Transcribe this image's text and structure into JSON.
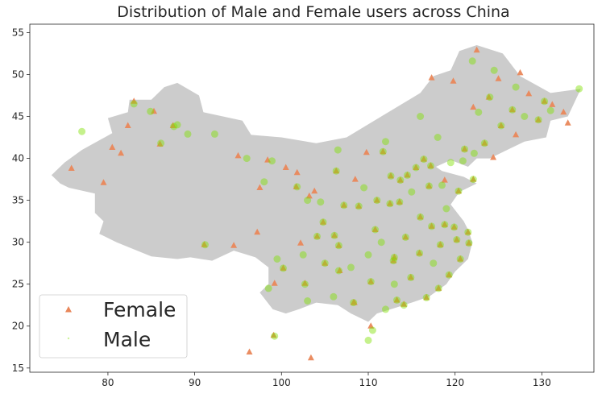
{
  "chart_data": {
    "type": "scatter",
    "title": "Distribution of Male and Female users across China",
    "xlabel": "",
    "ylabel": "",
    "xlim": [
      71,
      136
    ],
    "ylim": [
      14.5,
      56
    ],
    "xticks": [
      80,
      90,
      100,
      110,
      120,
      130
    ],
    "yticks": [
      15,
      20,
      25,
      30,
      35,
      40,
      45,
      50,
      55
    ],
    "grid": false,
    "legend_position": "lower-left",
    "background_map": "China (grey)",
    "series": [
      {
        "name": "Female",
        "marker": "triangle",
        "color": "#e9875a",
        "points": [
          [
            81.5,
            40.6
          ],
          [
            82.3,
            43.9
          ],
          [
            83.0,
            46.8
          ],
          [
            85.3,
            45.6
          ],
          [
            87.5,
            43.9
          ],
          [
            75.8,
            38.8
          ],
          [
            79.5,
            37.1
          ],
          [
            80.5,
            41.3
          ],
          [
            86.0,
            41.7
          ],
          [
            95.0,
            40.3
          ],
          [
            98.4,
            39.8
          ],
          [
            101.8,
            38.3
          ],
          [
            103.8,
            36.1
          ],
          [
            101.7,
            36.6
          ],
          [
            91.1,
            29.7
          ],
          [
            94.5,
            29.6
          ],
          [
            97.2,
            31.2
          ],
          [
            99.1,
            18.9
          ],
          [
            96.3,
            16.9
          ],
          [
            103.4,
            16.2
          ],
          [
            102.7,
            25.1
          ],
          [
            104.1,
            30.7
          ],
          [
            106.6,
            29.6
          ],
          [
            106.7,
            26.6
          ],
          [
            108.4,
            22.8
          ],
          [
            110.3,
            20.0
          ],
          [
            113.3,
            23.1
          ],
          [
            114.1,
            22.6
          ],
          [
            116.4,
            39.9
          ],
          [
            117.2,
            39.1
          ],
          [
            121.5,
            31.2
          ],
          [
            120.2,
            30.3
          ],
          [
            118.8,
            32.1
          ],
          [
            114.3,
            30.6
          ],
          [
            113.0,
            28.2
          ],
          [
            112.5,
            34.6
          ],
          [
            108.9,
            34.3
          ],
          [
            112.6,
            37.9
          ],
          [
            111.7,
            40.8
          ],
          [
            109.8,
            40.7
          ],
          [
            106.3,
            38.5
          ],
          [
            123.4,
            41.8
          ],
          [
            125.3,
            43.9
          ],
          [
            126.6,
            45.8
          ],
          [
            129.6,
            44.6
          ],
          [
            130.3,
            46.8
          ],
          [
            131.2,
            46.4
          ],
          [
            123.9,
            47.3
          ],
          [
            119.8,
            49.2
          ],
          [
            117.3,
            49.6
          ],
          [
            122.1,
            46.1
          ],
          [
            115.5,
            38.9
          ],
          [
            114.5,
            38.0
          ],
          [
            117.0,
            36.7
          ],
          [
            120.4,
            36.1
          ],
          [
            118.8,
            37.4
          ],
          [
            122.1,
            37.5
          ],
          [
            119.3,
            26.1
          ],
          [
            118.1,
            24.5
          ],
          [
            116.7,
            23.4
          ],
          [
            110.3,
            25.3
          ],
          [
            108.3,
            22.8
          ],
          [
            105.0,
            27.5
          ],
          [
            100.2,
            26.9
          ],
          [
            99.2,
            25.1
          ],
          [
            102.2,
            29.9
          ],
          [
            104.8,
            32.4
          ],
          [
            107.2,
            34.4
          ],
          [
            106.1,
            30.8
          ],
          [
            113.6,
            34.8
          ],
          [
            111.0,
            35.0
          ],
          [
            115.9,
            28.7
          ],
          [
            114.9,
            25.8
          ],
          [
            112.9,
            27.8
          ],
          [
            121.6,
            29.9
          ],
          [
            120.6,
            28.0
          ],
          [
            119.9,
            31.8
          ],
          [
            117.3,
            31.9
          ],
          [
            118.3,
            29.7
          ],
          [
            116.0,
            33.0
          ],
          [
            127.5,
            50.2
          ],
          [
            125.0,
            49.5
          ],
          [
            128.5,
            47.7
          ],
          [
            124.4,
            40.1
          ],
          [
            121.1,
            41.1
          ],
          [
            132.5,
            45.5
          ],
          [
            133.0,
            44.2
          ],
          [
            127.0,
            42.8
          ],
          [
            122.5,
            52.9
          ],
          [
            108.5,
            37.5
          ],
          [
            103.2,
            35.5
          ],
          [
            100.5,
            38.9
          ],
          [
            97.5,
            36.5
          ],
          [
            110.8,
            31.5
          ],
          [
            113.7,
            37.4
          ]
        ]
      },
      {
        "name": "Male",
        "marker": "circle",
        "color": "#7ee000",
        "points": [
          [
            77.0,
            43.2
          ],
          [
            83.0,
            46.5
          ],
          [
            84.9,
            45.6
          ],
          [
            86.1,
            41.8
          ],
          [
            87.6,
            43.8
          ],
          [
            89.2,
            42.9
          ],
          [
            88.0,
            44.0
          ],
          [
            92.3,
            42.9
          ],
          [
            98.0,
            37.2
          ],
          [
            98.9,
            39.7
          ],
          [
            103.0,
            35.0
          ],
          [
            101.8,
            36.6
          ],
          [
            91.2,
            29.7
          ],
          [
            99.2,
            18.8
          ],
          [
            106.6,
            26.6
          ],
          [
            110.0,
            18.3
          ],
          [
            110.5,
            19.5
          ],
          [
            112.0,
            22.0
          ],
          [
            113.3,
            23.1
          ],
          [
            114.1,
            22.5
          ],
          [
            116.4,
            39.9
          ],
          [
            117.2,
            39.1
          ],
          [
            121.5,
            31.2
          ],
          [
            120.2,
            30.3
          ],
          [
            118.8,
            32.1
          ],
          [
            114.3,
            30.6
          ],
          [
            113.0,
            28.2
          ],
          [
            112.5,
            34.6
          ],
          [
            108.9,
            34.3
          ],
          [
            112.6,
            37.9
          ],
          [
            111.7,
            40.8
          ],
          [
            106.3,
            38.5
          ],
          [
            123.4,
            41.8
          ],
          [
            125.3,
            43.9
          ],
          [
            126.6,
            45.8
          ],
          [
            129.6,
            44.6
          ],
          [
            130.3,
            46.8
          ],
          [
            124.0,
            47.3
          ],
          [
            122.0,
            51.6
          ],
          [
            124.5,
            50.5
          ],
          [
            127.0,
            48.5
          ],
          [
            134.3,
            48.3
          ],
          [
            131.0,
            45.7
          ],
          [
            128.0,
            45.0
          ],
          [
            122.7,
            45.5
          ],
          [
            118.0,
            42.5
          ],
          [
            121.1,
            41.1
          ],
          [
            122.2,
            40.6
          ],
          [
            120.9,
            39.7
          ],
          [
            118.5,
            36.8
          ],
          [
            120.4,
            36.1
          ],
          [
            122.1,
            37.5
          ],
          [
            119.3,
            26.1
          ],
          [
            118.1,
            24.5
          ],
          [
            116.7,
            23.4
          ],
          [
            110.3,
            25.3
          ],
          [
            108.3,
            22.8
          ],
          [
            105.0,
            27.5
          ],
          [
            100.2,
            26.9
          ],
          [
            102.7,
            25.0
          ],
          [
            104.1,
            30.7
          ],
          [
            106.6,
            29.6
          ],
          [
            104.8,
            32.4
          ],
          [
            107.2,
            34.4
          ],
          [
            106.1,
            30.8
          ],
          [
            113.6,
            34.8
          ],
          [
            111.0,
            35.0
          ],
          [
            115.9,
            28.7
          ],
          [
            114.9,
            25.8
          ],
          [
            112.9,
            27.8
          ],
          [
            121.6,
            29.9
          ],
          [
            120.6,
            28.0
          ],
          [
            119.9,
            31.8
          ],
          [
            117.3,
            31.9
          ],
          [
            118.3,
            29.7
          ],
          [
            116.0,
            33.0
          ],
          [
            115.5,
            38.9
          ],
          [
            114.5,
            38.0
          ],
          [
            117.0,
            36.7
          ],
          [
            110.8,
            31.5
          ],
          [
            113.7,
            37.4
          ],
          [
            109.5,
            36.5
          ],
          [
            108.0,
            27.0
          ],
          [
            111.5,
            30.0
          ],
          [
            115.0,
            36.0
          ],
          [
            119.0,
            34.0
          ],
          [
            110.0,
            28.5
          ],
          [
            113.0,
            25.0
          ],
          [
            117.5,
            27.5
          ],
          [
            104.5,
            34.8
          ],
          [
            102.5,
            28.5
          ],
          [
            106.0,
            23.5
          ],
          [
            103.0,
            23.0
          ],
          [
            98.5,
            24.5
          ],
          [
            99.5,
            28.0
          ],
          [
            116.0,
            45.0
          ],
          [
            119.5,
            39.5
          ],
          [
            112.0,
            42.0
          ],
          [
            106.5,
            41.0
          ],
          [
            96.0,
            40.0
          ]
        ]
      }
    ],
    "map_outline": [
      [
        75.0,
        39.5
      ],
      [
        73.5,
        38.0
      ],
      [
        74.5,
        37.0
      ],
      [
        75.5,
        36.5
      ],
      [
        78.5,
        35.8
      ],
      [
        78.5,
        33.5
      ],
      [
        79.5,
        32.5
      ],
      [
        79.0,
        31.0
      ],
      [
        81.0,
        30.0
      ],
      [
        85.0,
        28.3
      ],
      [
        88.0,
        28.0
      ],
      [
        89.5,
        28.2
      ],
      [
        92.0,
        27.8
      ],
      [
        94.5,
        29.0
      ],
      [
        97.0,
        28.2
      ],
      [
        98.5,
        27.0
      ],
      [
        98.5,
        25.0
      ],
      [
        97.5,
        24.0
      ],
      [
        99.0,
        22.0
      ],
      [
        100.5,
        21.5
      ],
      [
        102.0,
        22.0
      ],
      [
        104.0,
        22.8
      ],
      [
        106.5,
        22.5
      ],
      [
        108.0,
        21.5
      ],
      [
        110.0,
        20.5
      ],
      [
        111.0,
        21.5
      ],
      [
        113.5,
        22.3
      ],
      [
        115.0,
        22.8
      ],
      [
        117.0,
        23.5
      ],
      [
        119.0,
        25.0
      ],
      [
        120.0,
        26.5
      ],
      [
        121.5,
        28.0
      ],
      [
        122.0,
        30.0
      ],
      [
        121.5,
        31.5
      ],
      [
        121.0,
        32.5
      ],
      [
        119.5,
        34.5
      ],
      [
        120.5,
        36.0
      ],
      [
        122.5,
        37.0
      ],
      [
        121.0,
        37.8
      ],
      [
        118.5,
        38.5
      ],
      [
        117.8,
        39.0
      ],
      [
        119.5,
        39.8
      ],
      [
        121.5,
        39.0
      ],
      [
        122.5,
        40.0
      ],
      [
        124.0,
        40.0
      ],
      [
        126.0,
        41.0
      ],
      [
        128.0,
        42.0
      ],
      [
        130.5,
        42.5
      ],
      [
        131.0,
        44.5
      ],
      [
        133.0,
        45.0
      ],
      [
        134.5,
        48.3
      ],
      [
        131.0,
        47.8
      ],
      [
        127.5,
        49.8
      ],
      [
        125.5,
        52.5
      ],
      [
        122.5,
        53.5
      ],
      [
        120.5,
        52.8
      ],
      [
        119.5,
        50.5
      ],
      [
        117.5,
        49.8
      ],
      [
        116.0,
        47.8
      ],
      [
        111.5,
        45.0
      ],
      [
        107.5,
        42.5
      ],
      [
        104.0,
        41.8
      ],
      [
        100.0,
        42.5
      ],
      [
        96.5,
        42.8
      ],
      [
        95.5,
        44.5
      ],
      [
        91.0,
        45.5
      ],
      [
        90.5,
        47.5
      ],
      [
        88.0,
        49.0
      ],
      [
        86.5,
        48.5
      ],
      [
        85.0,
        47.0
      ],
      [
        82.5,
        47.0
      ],
      [
        82.3,
        45.5
      ],
      [
        80.0,
        44.8
      ],
      [
        80.5,
        43.0
      ],
      [
        77.0,
        41.0
      ]
    ]
  }
}
